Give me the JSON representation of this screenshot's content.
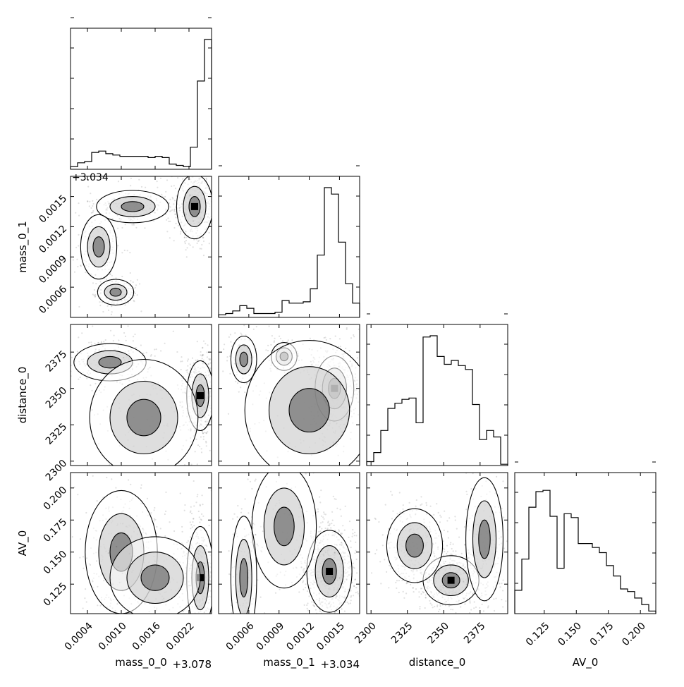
{
  "chart_data": {
    "type": "corner",
    "parameters": [
      "mass_0_0",
      "mass_0_1",
      "distance_0",
      "AV_0"
    ],
    "axis_labels": {
      "x": [
        "mass_0_0",
        "mass_0_1",
        "distance_0",
        "AV_0"
      ],
      "y": [
        "",
        "mass_0_1",
        "distance_0",
        "AV_0"
      ]
    },
    "offsets": {
      "mass_0_0": "+3.078",
      "mass_0_1": "+3.034",
      "mass_0_1_top": "+3.034"
    },
    "ranges": {
      "mass_0_0": [
        0.0001,
        0.0026
      ],
      "mass_0_1": [
        0.0003,
        0.0017
      ],
      "distance_0": [
        2297,
        2394
      ],
      "AV_0": [
        0.102,
        0.212
      ]
    },
    "ticks": {
      "mass_0_0": [
        0.0004,
        0.001,
        0.0016,
        0.0022
      ],
      "mass_0_1": [
        0.0006,
        0.0009,
        0.0012,
        0.0015
      ],
      "distance_0": [
        2300,
        2325,
        2350,
        2375
      ],
      "AV_0": [
        0.125,
        0.15,
        0.175,
        0.2
      ]
    },
    "tick_labels": {
      "mass_0_0": [
        "0.0004",
        "0.0010",
        "0.0016",
        "0.0022"
      ],
      "mass_0_1": [
        "0.0006",
        "0.0009",
        "0.0012",
        "0.0015"
      ],
      "distance_0": [
        "2300",
        "2325",
        "2350",
        "2375"
      ],
      "AV_0": [
        "0.125",
        "0.150",
        "0.175",
        "0.200"
      ]
    },
    "histograms": {
      "mass_0_0": [
        0.02,
        0.05,
        0.06,
        0.13,
        0.14,
        0.12,
        0.11,
        0.1,
        0.1,
        0.1,
        0.1,
        0.09,
        0.1,
        0.09,
        0.04,
        0.03,
        0.02,
        0.17,
        0.68,
        1.0
      ],
      "mass_0_1": [
        0.02,
        0.03,
        0.05,
        0.09,
        0.07,
        0.03,
        0.03,
        0.03,
        0.04,
        0.13,
        0.11,
        0.11,
        0.12,
        0.22,
        0.48,
        1.0,
        0.95,
        0.58,
        0.26,
        0.11
      ],
      "distance_0": [
        0.03,
        0.1,
        0.27,
        0.44,
        0.48,
        0.51,
        0.52,
        0.33,
        0.99,
        1.0,
        0.84,
        0.78,
        0.81,
        0.77,
        0.74,
        0.47,
        0.2,
        0.27,
        0.22,
        0.01
      ],
      "AV_0": [
        0.18,
        0.42,
        0.82,
        0.94,
        0.95,
        0.75,
        0.35,
        0.77,
        0.74,
        0.54,
        0.54,
        0.51,
        0.47,
        0.37,
        0.29,
        0.19,
        0.17,
        0.12,
        0.07,
        0.02
      ]
    }
  }
}
